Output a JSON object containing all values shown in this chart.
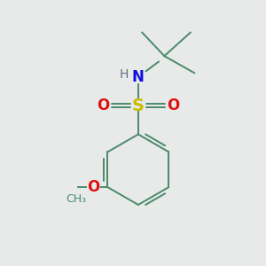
{
  "background_color": "#e8eaea",
  "atom_colors": {
    "C": "#4a8a6a",
    "H": "#607080",
    "N": "#1010dd",
    "O": "#dd1010",
    "S": "#ccbb00"
  },
  "bond_color": "#4a8a6a",
  "figsize": [
    3.0,
    3.0
  ],
  "dpi": 100,
  "bond_lw": 1.4
}
